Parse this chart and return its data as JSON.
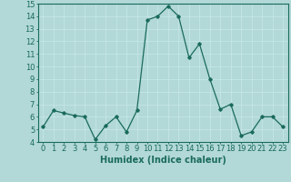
{
  "x": [
    0,
    1,
    2,
    3,
    4,
    5,
    6,
    7,
    8,
    9,
    10,
    11,
    12,
    13,
    14,
    15,
    16,
    17,
    18,
    19,
    20,
    21,
    22,
    23
  ],
  "y": [
    5.2,
    6.5,
    6.3,
    6.1,
    6.0,
    4.2,
    5.3,
    6.0,
    4.8,
    6.5,
    13.7,
    14.0,
    14.8,
    14.0,
    10.7,
    11.8,
    9.0,
    6.6,
    7.0,
    4.5,
    4.8,
    6.0,
    6.0,
    5.2
  ],
  "line_color": "#1a6b5a",
  "bg_color": "#b2d8d8",
  "grid_color": "#c8e8e8",
  "xlabel": "Humidex (Indice chaleur)",
  "ylim": [
    4,
    15
  ],
  "xlim_min": -0.5,
  "xlim_max": 23.5,
  "yticks": [
    4,
    5,
    6,
    7,
    8,
    9,
    10,
    11,
    12,
    13,
    14,
    15
  ],
  "xticks": [
    0,
    1,
    2,
    3,
    4,
    5,
    6,
    7,
    8,
    9,
    10,
    11,
    12,
    13,
    14,
    15,
    16,
    17,
    18,
    19,
    20,
    21,
    22,
    23
  ],
  "xlabel_fontsize": 7,
  "tick_fontsize": 6,
  "marker": "D",
  "marker_size": 1.8,
  "linewidth": 0.9
}
